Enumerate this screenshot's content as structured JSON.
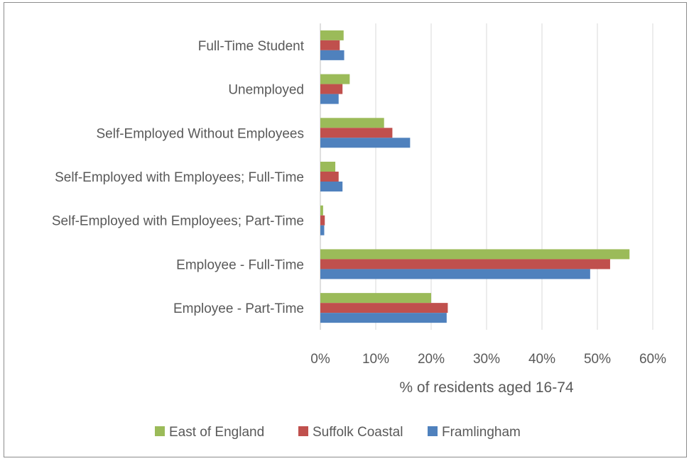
{
  "chart_data": {
    "type": "bar",
    "orientation": "horizontal",
    "title": "",
    "xlabel": "% of residents aged 16-74",
    "ylabel": "",
    "xlim": [
      0,
      60
    ],
    "x_ticks": [
      "0%",
      "10%",
      "20%",
      "30%",
      "40%",
      "50%",
      "60%"
    ],
    "grid": "vertical",
    "legend_position": "bottom",
    "categories": [
      "Full-Time Student",
      "Unemployed",
      "Self-Employed Without Employees",
      "Self-Employed with Employees; Full-Time",
      "Self-Employed with Employees; Part-Time",
      "Employee - Full-Time",
      "Employee - Part-Time"
    ],
    "series": [
      {
        "name": "East of England",
        "color": "#9bbb59",
        "values": [
          4.2,
          5.3,
          11.5,
          2.7,
          0.5,
          55.8,
          20.0
        ]
      },
      {
        "name": "Suffolk Coastal",
        "color": "#c0504d",
        "values": [
          3.5,
          4.0,
          13.0,
          3.3,
          0.8,
          52.3,
          23.0
        ]
      },
      {
        "name": "Framlingham",
        "color": "#4f81bd",
        "values": [
          4.3,
          3.3,
          16.2,
          4.0,
          0.7,
          48.7,
          22.8
        ]
      }
    ]
  }
}
